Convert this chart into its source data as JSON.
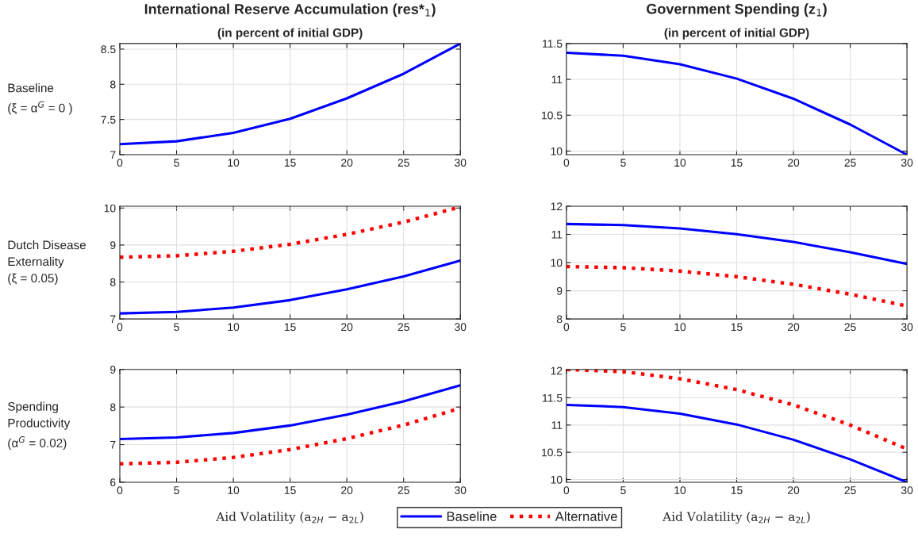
{
  "chart_data": [
    {
      "type": "line",
      "title": "International Reserve Accumulation (res*$_{1}$)",
      "subtitle": "(in percent of initial GDP)",
      "annotations": [
        "Baseline\n(ξ = α$^{G}$ = 0 )"
      ],
      "x": [
        0,
        5,
        10,
        15,
        20,
        25,
        30
      ],
      "xlim": [
        0,
        30
      ],
      "xticks": [
        0,
        5,
        10,
        15,
        20,
        25,
        30
      ],
      "ylim": [
        7,
        8.58
      ],
      "yticks": [
        7,
        7.5,
        8,
        8.5
      ],
      "grid": true,
      "series": [
        {
          "color": "#0000ff",
          "line_style": "solid",
          "values": [
            7.15,
            7.19,
            7.31,
            7.51,
            7.8,
            8.15,
            8.58
          ]
        }
      ]
    },
    {
      "type": "line",
      "title": "Government Spending (z$_{1}$)",
      "subtitle": "(in percent of initial GDP)",
      "x": [
        0,
        5,
        10,
        15,
        20,
        25,
        30
      ],
      "xlim": [
        0,
        30
      ],
      "xticks": [
        0,
        5,
        10,
        15,
        20,
        25,
        30
      ],
      "ylim": [
        9.95,
        11.5
      ],
      "yticks": [
        10,
        10.5,
        11,
        11.5
      ],
      "grid": true,
      "series": [
        {
          "color": "#0000ff",
          "line_style": "solid",
          "values": [
            11.37,
            11.33,
            11.21,
            11.01,
            10.73,
            10.37,
            9.95
          ]
        }
      ]
    },
    {
      "type": "line",
      "annotations": [
        "Dutch Disease\nExternality\n(ξ = 0.05)"
      ],
      "x": [
        0,
        5,
        10,
        15,
        20,
        25,
        30
      ],
      "xlim": [
        0,
        30
      ],
      "xticks": [
        0,
        5,
        10,
        15,
        20,
        25,
        30
      ],
      "ylim": [
        7,
        10.05
      ],
      "yticks": [
        7,
        8,
        9,
        10
      ],
      "grid": true,
      "series": [
        {
          "color": "#0000ff",
          "line_style": "solid",
          "values": [
            7.15,
            7.19,
            7.31,
            7.51,
            7.8,
            8.15,
            8.58
          ]
        },
        {
          "color": "#ff0000",
          "line_style": "dotted",
          "values": [
            8.67,
            8.71,
            8.83,
            9.02,
            9.29,
            9.62,
            10.03
          ]
        }
      ]
    },
    {
      "type": "line",
      "x": [
        0,
        5,
        10,
        15,
        20,
        25,
        30
      ],
      "xlim": [
        0,
        30
      ],
      "xticks": [
        0,
        5,
        10,
        15,
        20,
        25,
        30
      ],
      "ylim": [
        8,
        12
      ],
      "yticks": [
        8,
        9,
        10,
        11,
        12
      ],
      "grid": true,
      "series": [
        {
          "color": "#0000ff",
          "line_style": "solid",
          "values": [
            11.37,
            11.33,
            11.21,
            11.01,
            10.73,
            10.37,
            9.95
          ]
        },
        {
          "color": "#ff0000",
          "line_style": "dotted",
          "values": [
            9.86,
            9.82,
            9.7,
            9.5,
            9.23,
            8.88,
            8.46
          ]
        }
      ]
    },
    {
      "type": "line",
      "xlabel": "Aid Volatility (a$_{2H}$ − a$_{2L}$)",
      "annotations": [
        "Spending\nProductivity\n(α$^{G}$ = 0.02)"
      ],
      "legend": "bottom",
      "x": [
        0,
        5,
        10,
        15,
        20,
        25,
        30
      ],
      "xlim": [
        0,
        30
      ],
      "xticks": [
        0,
        5,
        10,
        15,
        20,
        25,
        30
      ],
      "ylim": [
        6,
        9
      ],
      "yticks": [
        6,
        7,
        8,
        9
      ],
      "grid": true,
      "series": [
        {
          "name": "Baseline",
          "color": "#0000ff",
          "line_style": "solid",
          "values": [
            7.15,
            7.19,
            7.31,
            7.51,
            7.8,
            8.15,
            8.58
          ]
        },
        {
          "name": "Alternative",
          "color": "#ff0000",
          "line_style": "dotted",
          "values": [
            6.49,
            6.53,
            6.66,
            6.87,
            7.16,
            7.52,
            7.97
          ]
        }
      ]
    },
    {
      "type": "line",
      "xlabel": "Aid Volatility (a$_{2H}$ − a$_{2L}$)",
      "x": [
        0,
        5,
        10,
        15,
        20,
        25,
        30
      ],
      "xlim": [
        0,
        30
      ],
      "xticks": [
        0,
        5,
        10,
        15,
        20,
        25,
        30
      ],
      "ylim": [
        9.95,
        12.02
      ],
      "yticks": [
        10,
        10.5,
        11,
        11.5,
        12
      ],
      "grid": true,
      "series": [
        {
          "color": "#0000ff",
          "line_style": "solid",
          "values": [
            11.37,
            11.33,
            11.21,
            11.01,
            10.73,
            10.37,
            9.95
          ]
        },
        {
          "color": "#ff0000",
          "line_style": "dotted",
          "values": [
            12.02,
            11.98,
            11.85,
            11.65,
            11.37,
            11.0,
            10.56
          ]
        }
      ]
    }
  ]
}
